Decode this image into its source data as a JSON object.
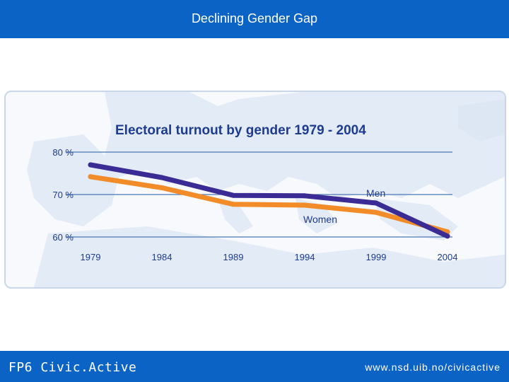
{
  "slide": {
    "title": "Declining Gender Gap"
  },
  "footer": {
    "left_label": "FP6 Civic.Active",
    "right_label": "www.nsd.uib.no/civicactive"
  },
  "colors": {
    "header_blue": "#0b63c6",
    "men_line": "#3b2c95",
    "women_line": "#f28c28",
    "grid": "#4a78b4",
    "chart_title": "#1d3c8f"
  },
  "chart_data": {
    "type": "line",
    "title": "Electoral turnout by gender 1979 - 2004",
    "xlabel": "",
    "ylabel": "",
    "x": [
      "1979",
      "1984",
      "1989",
      "1994",
      "1999",
      "2004"
    ],
    "ylim": [
      60,
      80
    ],
    "yticks": [
      60,
      70,
      80
    ],
    "ytick_labels": [
      "60 %",
      "70 %",
      "80 %"
    ],
    "grid": true,
    "series": [
      {
        "name": "Men",
        "color": "#3b2c95",
        "values": [
          77.0,
          74.0,
          69.8,
          69.7,
          68.0,
          60.2
        ]
      },
      {
        "name": "Women",
        "color": "#f28c28",
        "values": [
          74.2,
          71.6,
          67.7,
          67.5,
          65.8,
          61.2
        ]
      }
    ]
  }
}
